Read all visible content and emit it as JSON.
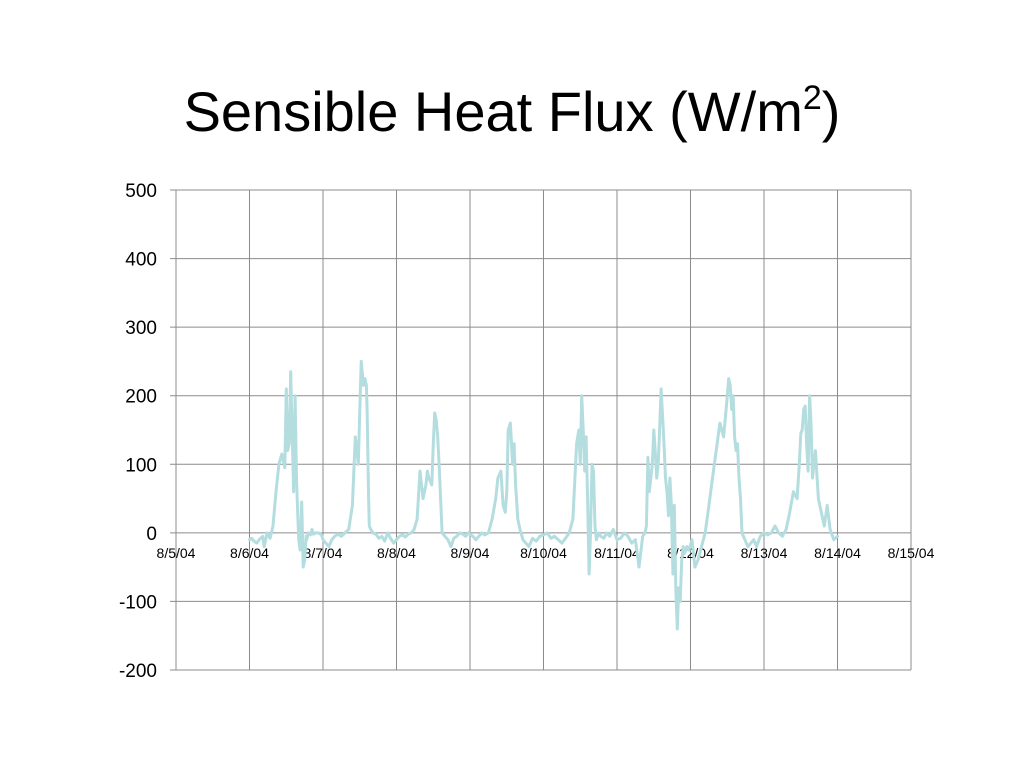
{
  "slide": {
    "title": "Sensible Heat Flux (W/m",
    "title_superscript": "2",
    "title_close": ")"
  },
  "chart_data": {
    "type": "line",
    "title": "Sensible Heat Flux (W/m²)",
    "xlabel": "",
    "ylabel": "",
    "x_tick_labels": [
      "8/5/04",
      "8/6/04",
      "8/7/04",
      "8/8/04",
      "8/9/04",
      "8/10/04",
      "8/11/04",
      "8/12/04",
      "8/13/04",
      "8/14/04",
      "8/15/04"
    ],
    "y_tick_labels": [
      "500",
      "400",
      "300",
      "200",
      "100",
      "0",
      "-100",
      "-200"
    ],
    "xlim": [
      "8/5/04",
      "8/15/04"
    ],
    "ylim": [
      -200,
      500
    ],
    "grid": true,
    "legend": "none",
    "line_color": "#b4dde0",
    "series": [
      {
        "x_days_from_8_5_04": [
          1.0,
          1.03,
          1.06,
          1.1,
          1.13,
          1.18,
          1.2,
          1.24,
          1.28,
          1.32,
          1.36,
          1.4,
          1.44,
          1.48,
          1.5,
          1.52,
          1.54,
          1.55,
          1.56,
          1.57,
          1.58,
          1.6,
          1.62,
          1.64,
          1.65,
          1.67,
          1.69,
          1.71,
          1.73,
          1.75,
          1.77,
          1.78,
          1.8,
          1.83,
          1.85,
          1.87,
          1.9,
          1.94,
          1.98,
          2.0,
          2.04,
          2.08,
          2.12,
          2.16,
          2.2,
          2.25,
          2.3,
          2.35,
          2.4,
          2.44,
          2.48,
          2.52,
          2.55,
          2.57,
          2.59,
          2.6,
          2.61,
          2.62,
          2.63,
          2.65,
          2.68,
          2.72,
          2.76,
          2.8,
          2.84,
          2.88,
          2.92,
          2.96,
          3.0,
          3.04,
          3.08,
          3.12,
          3.16,
          3.2,
          3.24,
          3.28,
          3.32,
          3.36,
          3.4,
          3.42,
          3.44,
          3.46,
          3.48,
          3.5,
          3.52,
          3.54,
          3.56,
          3.58,
          3.6,
          3.62,
          3.66,
          3.7,
          3.74,
          3.78,
          3.82,
          3.86,
          3.9,
          3.94,
          3.98,
          4.0,
          4.04,
          4.08,
          4.12,
          4.16,
          4.2,
          4.25,
          4.3,
          4.35,
          4.38,
          4.42,
          4.45,
          4.48,
          4.5,
          4.52,
          4.55,
          4.58,
          4.6,
          4.62,
          4.65,
          4.68,
          4.72,
          4.76,
          4.8,
          4.85,
          4.9,
          4.95,
          5.0,
          5.05,
          5.1,
          5.15,
          5.2,
          5.25,
          5.3,
          5.35,
          5.4,
          5.45,
          5.48,
          5.5,
          5.52,
          5.54,
          5.56,
          5.58,
          5.6,
          5.62,
          5.64,
          5.66,
          5.68,
          5.7,
          5.72,
          5.75,
          5.78,
          5.82,
          5.86,
          5.9,
          5.95,
          6.0,
          6.05,
          6.1,
          6.15,
          6.2,
          6.25,
          6.3,
          6.35,
          6.38,
          6.4,
          6.42,
          6.44,
          6.46,
          6.48,
          6.5,
          6.52,
          6.54,
          6.56,
          6.58,
          6.6,
          6.62,
          6.64,
          6.66,
          6.68,
          6.7,
          6.72,
          6.74,
          6.76,
          6.78,
          6.8,
          6.82,
          6.84,
          6.86,
          6.88,
          6.9,
          6.92,
          6.95,
          6.98,
          7.02,
          7.06,
          7.1,
          7.15,
          7.2,
          7.25,
          7.3,
          7.35,
          7.4,
          7.45,
          7.48,
          7.5,
          7.52,
          7.54,
          7.56,
          7.58,
          7.6,
          7.62,
          7.64,
          7.66,
          7.68,
          7.7,
          7.74,
          7.78,
          7.82,
          7.86,
          7.9,
          7.95,
          8.0,
          8.05,
          8.1,
          8.15,
          8.2,
          8.25,
          8.3,
          8.35,
          8.4,
          8.45,
          8.48,
          8.5,
          8.52,
          8.54,
          8.56,
          8.58,
          8.6,
          8.62,
          8.64,
          8.66,
          8.7,
          8.74,
          8.78,
          8.82,
          8.86,
          8.9,
          8.95,
          9.0
        ],
        "values": [
          -10,
          -8,
          -12,
          -15,
          -10,
          -5,
          -20,
          0,
          -8,
          10,
          60,
          100,
          115,
          95,
          210,
          120,
          130,
          175,
          235,
          190,
          150,
          60,
          200,
          80,
          45,
          -10,
          -25,
          45,
          -50,
          -40,
          -5,
          -10,
          0,
          -3,
          5,
          -2,
          0,
          0,
          -3,
          -10,
          -15,
          -20,
          -10,
          -5,
          -2,
          -5,
          0,
          5,
          40,
          140,
          100,
          250,
          215,
          225,
          215,
          180,
          120,
          50,
          10,
          5,
          0,
          -2,
          -8,
          -5,
          -12,
          0,
          -8,
          -15,
          -10,
          -5,
          -3,
          -6,
          -2,
          0,
          5,
          20,
          90,
          50,
          70,
          90,
          80,
          75,
          70,
          130,
          175,
          165,
          140,
          100,
          50,
          0,
          -5,
          -10,
          -20,
          -8,
          -5,
          0,
          -2,
          -5,
          0,
          -2,
          -5,
          -10,
          -5,
          0,
          -3,
          0,
          20,
          50,
          80,
          90,
          40,
          30,
          60,
          150,
          160,
          100,
          130,
          70,
          20,
          5,
          -10,
          -15,
          -20,
          -8,
          -12,
          -5,
          -3,
          0,
          -8,
          -5,
          -10,
          -15,
          -8,
          0,
          20,
          130,
          150,
          100,
          200,
          150,
          90,
          140,
          50,
          -60,
          0,
          100,
          90,
          10,
          -10,
          0,
          -5,
          -8,
          0,
          -5,
          5,
          -10,
          -8,
          0,
          -5,
          -15,
          -10,
          -50,
          -5,
          0,
          10,
          110,
          60,
          80,
          100,
          150,
          120,
          80,
          100,
          150,
          210,
          170,
          130,
          80,
          60,
          25,
          80,
          40,
          -60,
          40,
          -80,
          -140,
          -80,
          -100,
          -40,
          -20,
          -30,
          -20,
          -25,
          -10,
          -50,
          -40,
          -20,
          0,
          40,
          80,
          120,
          160,
          140,
          175,
          200,
          225,
          215,
          180,
          200,
          140,
          120,
          130,
          80,
          50,
          0,
          -10,
          -20,
          -15,
          -10,
          -20,
          -5,
          0,
          -3,
          0,
          10,
          0,
          -5,
          5,
          30,
          60,
          50,
          100,
          145,
          150,
          180,
          185,
          130,
          90,
          200,
          160,
          80,
          120,
          50,
          30,
          10,
          40,
          5,
          -10,
          -5,
          0,
          5,
          0
        ]
      }
    ]
  }
}
